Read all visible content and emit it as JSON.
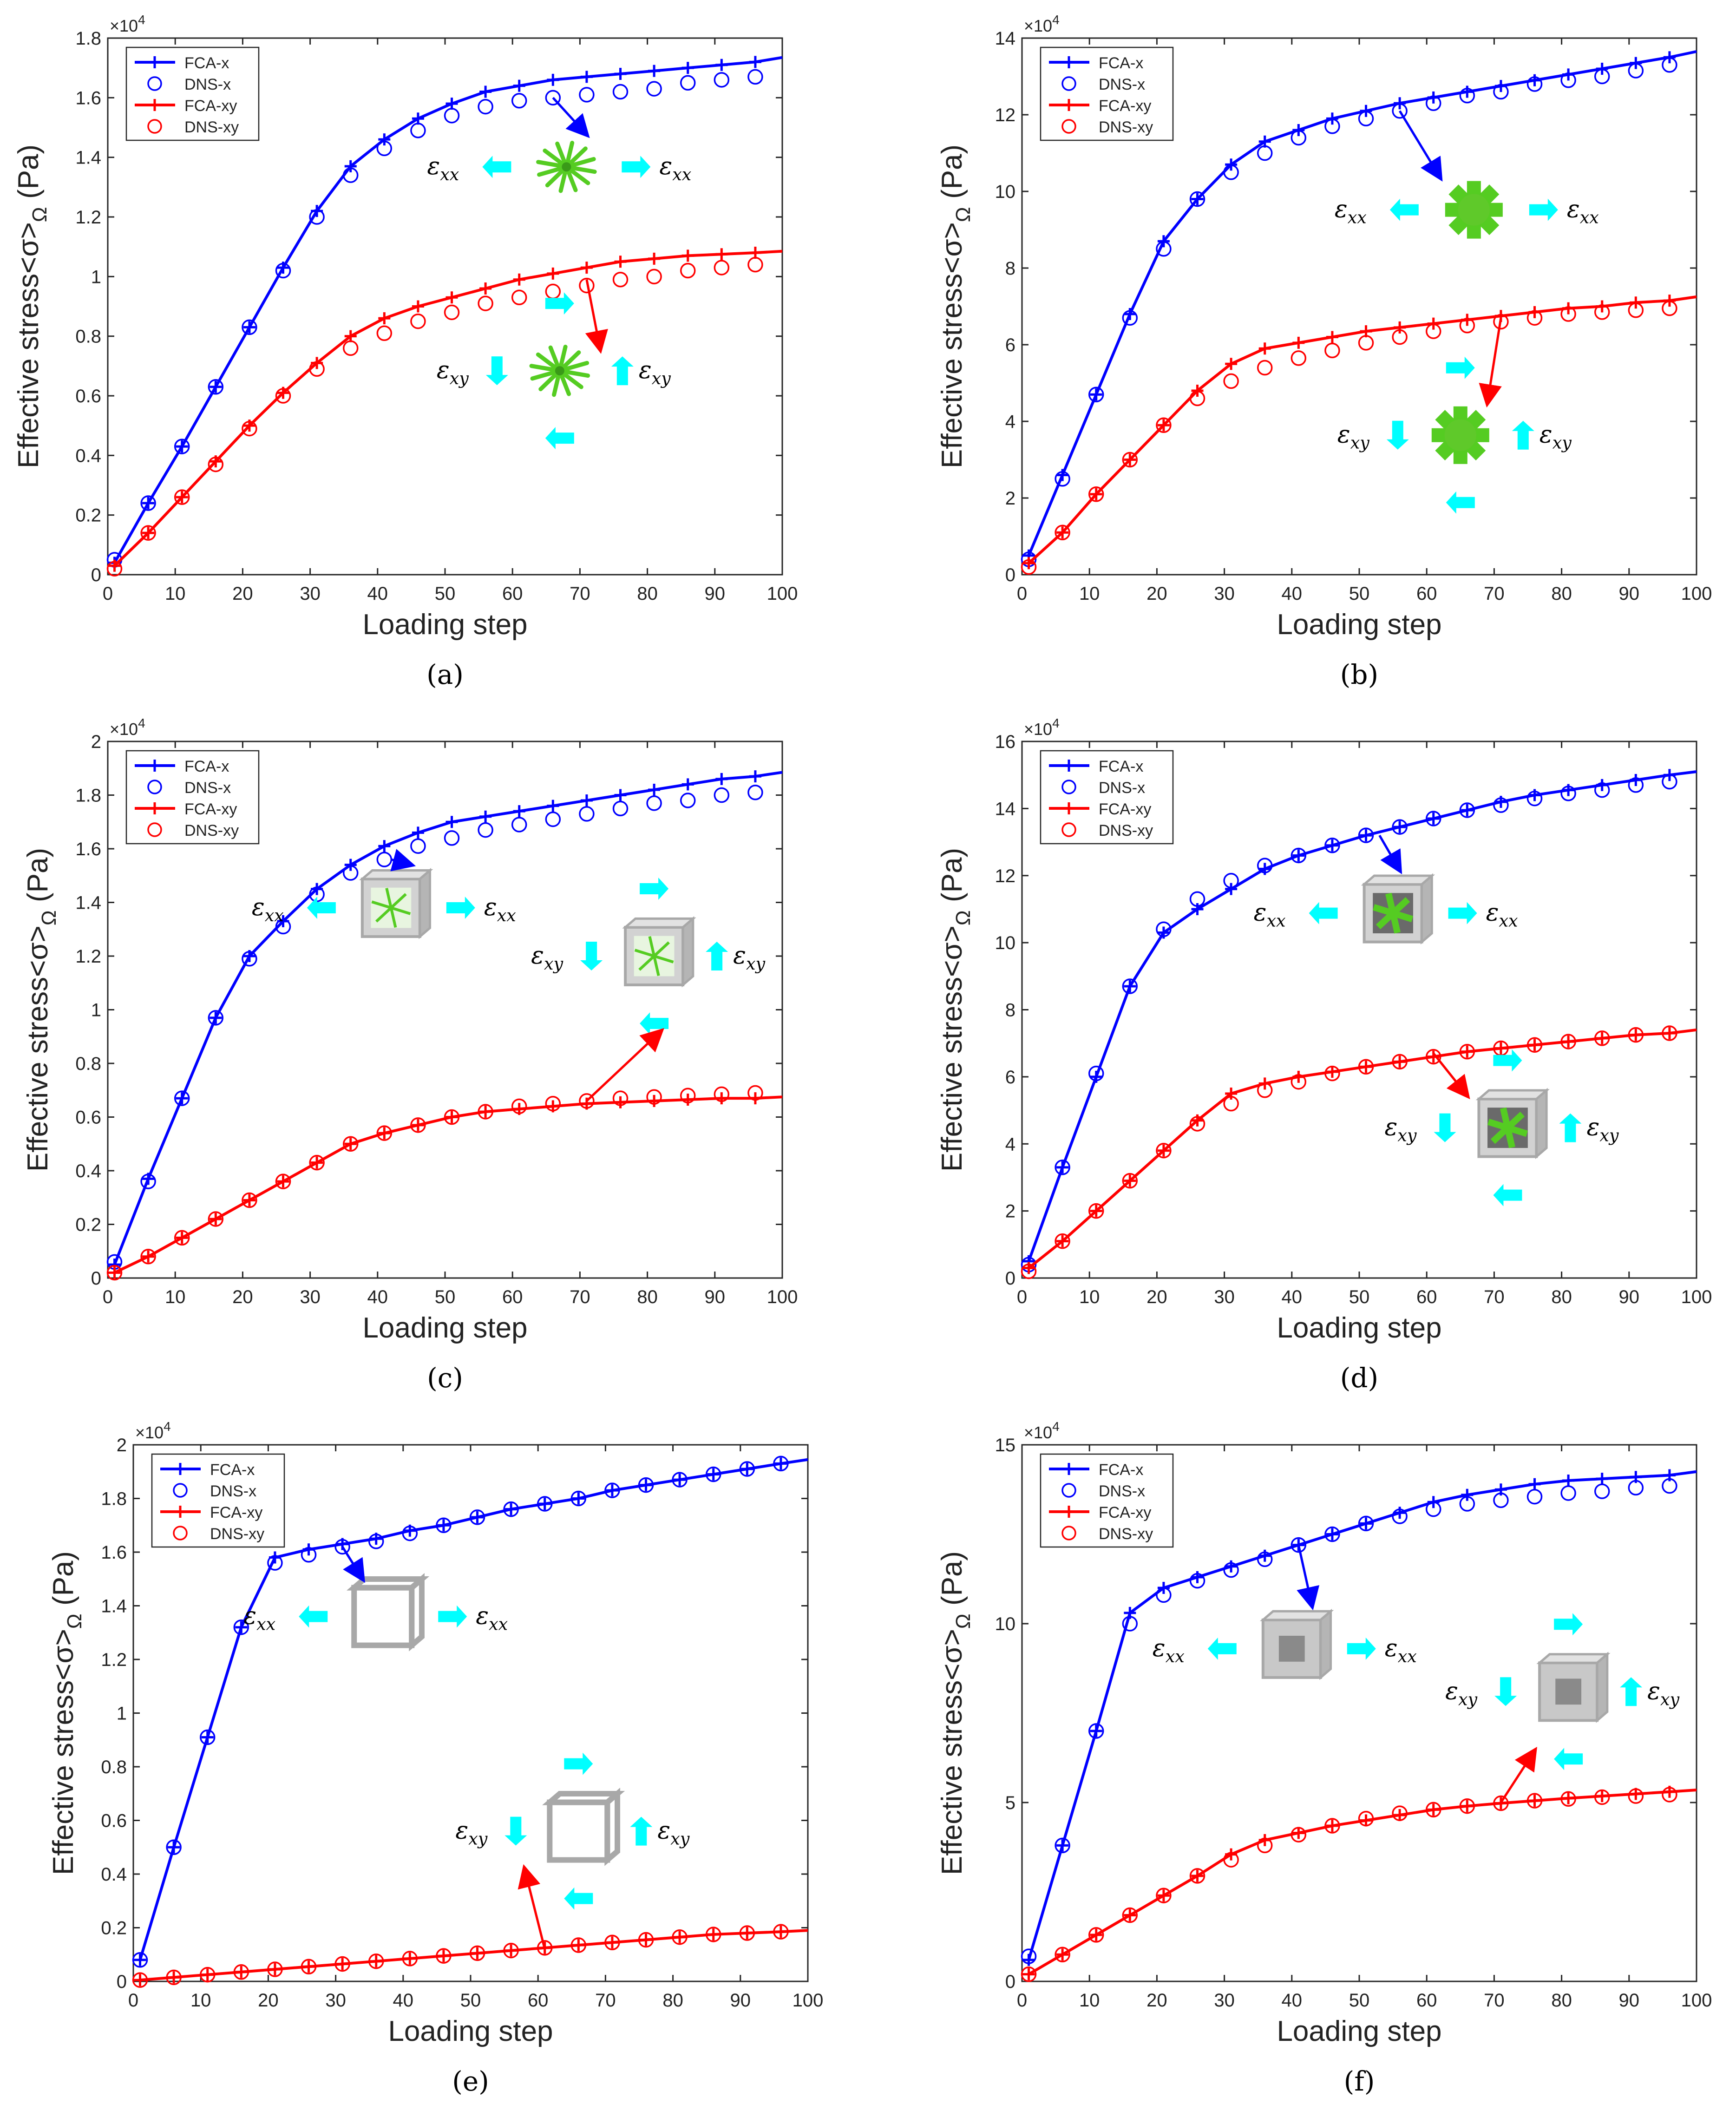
{
  "figure": {
    "colors": {
      "blue": "#0000ff",
      "red": "#ff0000",
      "cyan": "#00ffff",
      "green": "#55cc22",
      "frame": "#a8a8a8",
      "axis": "#262626"
    },
    "common": {
      "xlabel": "Loading step",
      "ylabel": "Effective stress<σ>",
      "ylabel_sub": "Ω",
      "ylabel_unit": " (Pa)",
      "exponent": "×10",
      "exponent_power": "4",
      "strain_xx": "ε",
      "strain_xx_sub": "xx",
      "strain_xy": "ε",
      "strain_xy_sub": "xy"
    }
  },
  "chart_data": [
    {
      "type": "line",
      "panel": "a",
      "caption": "(a)",
      "xlim": [
        0,
        100
      ],
      "ylim": [
        0,
        1.8
      ],
      "xticks": [
        0,
        10,
        20,
        30,
        40,
        50,
        60,
        70,
        80,
        90,
        100
      ],
      "yticks": [
        0,
        0.2,
        0.4,
        0.6,
        0.8,
        1,
        1.2,
        1.4,
        1.6,
        1.8
      ],
      "ytick_labels": [
        "0",
        "0.2",
        "0.4",
        "0.6",
        "0.8",
        "1",
        "1.2",
        "1.4",
        "1.6",
        "1.8"
      ],
      "inset": "star",
      "legend": [
        "FCA-x",
        "DNS-x",
        "FCA-xy",
        "DNS-xy"
      ],
      "x": [
        1,
        6,
        11,
        16,
        21,
        26,
        31,
        36,
        41,
        46,
        51,
        56,
        61,
        66,
        71,
        76,
        81,
        86,
        91,
        96
      ],
      "series": [
        {
          "name": "FCA-x",
          "style": "line",
          "color": "blue",
          "values": [
            0.04,
            0.24,
            0.43,
            0.63,
            0.83,
            1.03,
            1.22,
            1.37,
            1.46,
            1.53,
            1.58,
            1.62,
            1.64,
            1.66,
            1.67,
            1.68,
            1.69,
            1.7,
            1.71,
            1.72
          ],
          "end": [
            100,
            1.735
          ]
        },
        {
          "name": "DNS-x",
          "style": "circle",
          "color": "blue",
          "values": [
            0.05,
            0.24,
            0.43,
            0.63,
            0.83,
            1.02,
            1.2,
            1.34,
            1.43,
            1.49,
            1.54,
            1.57,
            1.59,
            1.6,
            1.61,
            1.62,
            1.63,
            1.65,
            1.66,
            1.67
          ]
        },
        {
          "name": "FCA-xy",
          "style": "line",
          "color": "red",
          "values": [
            0.03,
            0.14,
            0.26,
            0.38,
            0.5,
            0.61,
            0.71,
            0.8,
            0.86,
            0.9,
            0.93,
            0.96,
            0.99,
            1.01,
            1.03,
            1.05,
            1.06,
            1.07,
            1.075,
            1.08
          ],
          "end": [
            100,
            1.085
          ]
        },
        {
          "name": "DNS-xy",
          "style": "circle",
          "color": "red",
          "values": [
            0.02,
            0.14,
            0.26,
            0.37,
            0.49,
            0.6,
            0.69,
            0.76,
            0.81,
            0.85,
            0.88,
            0.91,
            0.93,
            0.95,
            0.97,
            0.99,
            1.0,
            1.02,
            1.03,
            1.04
          ]
        }
      ]
    },
    {
      "type": "line",
      "panel": "b",
      "caption": "(b)",
      "xlim": [
        0,
        100
      ],
      "ylim": [
        0,
        14
      ],
      "xticks": [
        0,
        10,
        20,
        30,
        40,
        50,
        60,
        70,
        80,
        90,
        100
      ],
      "yticks": [
        0,
        2,
        4,
        6,
        8,
        10,
        12,
        14
      ],
      "ytick_labels": [
        "0",
        "2",
        "4",
        "6",
        "8",
        "10",
        "12",
        "14"
      ],
      "inset": "spiky",
      "legend": [
        "FCA-x",
        "DNS-x",
        "FCA-xy",
        "DNS-xy"
      ],
      "x": [
        1,
        6,
        11,
        16,
        21,
        26,
        31,
        36,
        41,
        46,
        51,
        56,
        61,
        66,
        71,
        76,
        81,
        86,
        91,
        96
      ],
      "series": [
        {
          "name": "FCA-x",
          "style": "line",
          "color": "blue",
          "values": [
            0.5,
            2.6,
            4.7,
            6.8,
            8.7,
            9.8,
            10.7,
            11.3,
            11.6,
            11.9,
            12.1,
            12.3,
            12.45,
            12.6,
            12.75,
            12.9,
            13.05,
            13.2,
            13.35,
            13.5
          ],
          "end": [
            100,
            13.65
          ]
        },
        {
          "name": "DNS-x",
          "style": "circle",
          "color": "blue",
          "values": [
            0.4,
            2.5,
            4.7,
            6.7,
            8.5,
            9.8,
            10.5,
            11.0,
            11.4,
            11.7,
            11.9,
            12.1,
            12.3,
            12.5,
            12.6,
            12.8,
            12.9,
            13.0,
            13.15,
            13.3
          ]
        },
        {
          "name": "FCA-xy",
          "style": "line",
          "color": "red",
          "values": [
            0.3,
            1.1,
            2.1,
            3.0,
            3.9,
            4.8,
            5.5,
            5.9,
            6.05,
            6.2,
            6.35,
            6.45,
            6.55,
            6.65,
            6.75,
            6.85,
            6.95,
            7.0,
            7.1,
            7.15
          ],
          "end": [
            100,
            7.25
          ]
        },
        {
          "name": "DNS-xy",
          "style": "circle",
          "color": "red",
          "values": [
            0.2,
            1.1,
            2.1,
            3.0,
            3.9,
            4.6,
            5.05,
            5.4,
            5.65,
            5.85,
            6.05,
            6.2,
            6.35,
            6.5,
            6.6,
            6.7,
            6.8,
            6.85,
            6.9,
            6.95
          ]
        }
      ]
    },
    {
      "type": "line",
      "panel": "c",
      "caption": "(c)",
      "xlim": [
        0,
        100
      ],
      "ylim": [
        0,
        2
      ],
      "xticks": [
        0,
        10,
        20,
        30,
        40,
        50,
        60,
        70,
        80,
        90,
        100
      ],
      "yticks": [
        0,
        0.2,
        0.4,
        0.6,
        0.8,
        1,
        1.2,
        1.4,
        1.6,
        1.8,
        2
      ],
      "ytick_labels": [
        "0",
        "0.2",
        "0.4",
        "0.6",
        "0.8",
        "1",
        "1.2",
        "1.4",
        "1.6",
        "1.8",
        "2"
      ],
      "inset": "cube-green",
      "legend": [
        "FCA-x",
        "DNS-x",
        "FCA-xy",
        "DNS-xy"
      ],
      "x": [
        1,
        6,
        11,
        16,
        21,
        26,
        31,
        36,
        41,
        46,
        51,
        56,
        61,
        66,
        71,
        76,
        81,
        86,
        91,
        96
      ],
      "series": [
        {
          "name": "FCA-x",
          "style": "line",
          "color": "blue",
          "values": [
            0.05,
            0.37,
            0.67,
            0.97,
            1.2,
            1.33,
            1.45,
            1.54,
            1.61,
            1.66,
            1.7,
            1.72,
            1.74,
            1.76,
            1.78,
            1.8,
            1.82,
            1.84,
            1.86,
            1.87
          ],
          "end": [
            100,
            1.885
          ]
        },
        {
          "name": "DNS-x",
          "style": "circle",
          "color": "blue",
          "values": [
            0.06,
            0.36,
            0.67,
            0.97,
            1.19,
            1.31,
            1.43,
            1.51,
            1.56,
            1.61,
            1.64,
            1.67,
            1.69,
            1.71,
            1.73,
            1.75,
            1.77,
            1.78,
            1.8,
            1.81
          ]
        },
        {
          "name": "FCA-xy",
          "style": "line",
          "color": "red",
          "values": [
            0.02,
            0.08,
            0.15,
            0.22,
            0.29,
            0.36,
            0.43,
            0.5,
            0.54,
            0.57,
            0.6,
            0.62,
            0.63,
            0.64,
            0.65,
            0.655,
            0.66,
            0.665,
            0.67,
            0.67
          ],
          "end": [
            100,
            0.675
          ]
        },
        {
          "name": "DNS-xy",
          "style": "circle",
          "color": "red",
          "values": [
            0.02,
            0.08,
            0.15,
            0.22,
            0.29,
            0.36,
            0.43,
            0.5,
            0.54,
            0.57,
            0.6,
            0.62,
            0.64,
            0.65,
            0.66,
            0.67,
            0.675,
            0.68,
            0.685,
            0.69
          ]
        }
      ]
    },
    {
      "type": "line",
      "panel": "d",
      "caption": "(d)",
      "xlim": [
        0,
        100
      ],
      "ylim": [
        0,
        16
      ],
      "xticks": [
        0,
        10,
        20,
        30,
        40,
        50,
        60,
        70,
        80,
        90,
        100
      ],
      "yticks": [
        0,
        2,
        4,
        6,
        8,
        10,
        12,
        14,
        16
      ],
      "ytick_labels": [
        "0",
        "2",
        "4",
        "6",
        "8",
        "10",
        "12",
        "14",
        "16"
      ],
      "inset": "cube-gray",
      "legend": [
        "FCA-x",
        "DNS-x",
        "FCA-xy",
        "DNS-xy"
      ],
      "x": [
        1,
        6,
        11,
        16,
        21,
        26,
        31,
        36,
        41,
        46,
        51,
        56,
        61,
        66,
        71,
        76,
        81,
        86,
        91,
        96
      ],
      "series": [
        {
          "name": "FCA-x",
          "style": "line",
          "color": "blue",
          "values": [
            0.5,
            3.3,
            6.0,
            8.7,
            10.3,
            11.0,
            11.6,
            12.2,
            12.6,
            12.9,
            13.2,
            13.45,
            13.7,
            13.95,
            14.2,
            14.4,
            14.55,
            14.7,
            14.85,
            15.0
          ],
          "end": [
            100,
            15.1
          ]
        },
        {
          "name": "DNS-x",
          "style": "circle",
          "color": "blue",
          "values": [
            0.4,
            3.3,
            6.1,
            8.7,
            10.4,
            11.3,
            11.85,
            12.3,
            12.6,
            12.9,
            13.2,
            13.45,
            13.7,
            13.95,
            14.1,
            14.3,
            14.45,
            14.55,
            14.7,
            14.8
          ]
        },
        {
          "name": "FCA-xy",
          "style": "line",
          "color": "red",
          "values": [
            0.3,
            1.1,
            2.0,
            2.9,
            3.8,
            4.7,
            5.5,
            5.8,
            6.0,
            6.15,
            6.3,
            6.45,
            6.6,
            6.75,
            6.85,
            6.95,
            7.05,
            7.15,
            7.25,
            7.3
          ],
          "end": [
            100,
            7.4
          ]
        },
        {
          "name": "DNS-xy",
          "style": "circle",
          "color": "red",
          "values": [
            0.2,
            1.1,
            2.0,
            2.9,
            3.8,
            4.6,
            5.2,
            5.6,
            5.85,
            6.1,
            6.3,
            6.45,
            6.6,
            6.75,
            6.85,
            6.95,
            7.05,
            7.15,
            7.25,
            7.3
          ]
        }
      ]
    },
    {
      "type": "line",
      "panel": "e",
      "caption": "(e)",
      "xlim": [
        0,
        100
      ],
      "ylim": [
        0,
        2
      ],
      "xticks": [
        0,
        10,
        20,
        30,
        40,
        50,
        60,
        70,
        80,
        90,
        100
      ],
      "yticks": [
        0,
        0.2,
        0.4,
        0.6,
        0.8,
        1,
        1.2,
        1.4,
        1.6,
        1.8,
        2
      ],
      "ytick_labels": [
        "0",
        "0.2",
        "0.4",
        "0.6",
        "0.8",
        "1",
        "1.2",
        "1.4",
        "1.6",
        "1.8",
        "2"
      ],
      "inset": "frame",
      "legend": [
        "FCA-x",
        "DNS-x",
        "FCA-xy",
        "DNS-xy"
      ],
      "x": [
        1,
        6,
        11,
        16,
        21,
        26,
        31,
        36,
        41,
        46,
        51,
        56,
        61,
        66,
        71,
        76,
        81,
        86,
        91,
        96
      ],
      "series": [
        {
          "name": "FCA-x",
          "style": "line",
          "color": "blue",
          "values": [
            0.08,
            0.5,
            0.91,
            1.32,
            1.58,
            1.61,
            1.63,
            1.65,
            1.68,
            1.7,
            1.73,
            1.76,
            1.78,
            1.8,
            1.83,
            1.85,
            1.87,
            1.89,
            1.91,
            1.93
          ],
          "end": [
            100,
            1.945
          ]
        },
        {
          "name": "DNS-x",
          "style": "circle",
          "color": "blue",
          "values": [
            0.08,
            0.5,
            0.91,
            1.32,
            1.56,
            1.59,
            1.62,
            1.64,
            1.67,
            1.7,
            1.73,
            1.76,
            1.78,
            1.8,
            1.83,
            1.85,
            1.87,
            1.89,
            1.91,
            1.93
          ]
        },
        {
          "name": "FCA-xy",
          "style": "line",
          "color": "red",
          "values": [
            0.005,
            0.015,
            0.025,
            0.035,
            0.045,
            0.055,
            0.065,
            0.075,
            0.085,
            0.095,
            0.105,
            0.115,
            0.125,
            0.135,
            0.145,
            0.155,
            0.165,
            0.175,
            0.18,
            0.185
          ],
          "end": [
            100,
            0.19
          ]
        },
        {
          "name": "DNS-xy",
          "style": "circle",
          "color": "red",
          "values": [
            0.005,
            0.015,
            0.025,
            0.035,
            0.045,
            0.055,
            0.065,
            0.075,
            0.085,
            0.095,
            0.105,
            0.115,
            0.125,
            0.135,
            0.145,
            0.155,
            0.165,
            0.175,
            0.18,
            0.185
          ]
        }
      ]
    },
    {
      "type": "line",
      "panel": "f",
      "caption": "(f)",
      "xlim": [
        0,
        100
      ],
      "ylim": [
        0,
        15
      ],
      "xticks": [
        0,
        10,
        20,
        30,
        40,
        50,
        60,
        70,
        80,
        90,
        100
      ],
      "yticks": [
        0,
        5,
        10,
        15
      ],
      "ytick_labels": [
        "0",
        "5",
        "10",
        "15"
      ],
      "inset": "hollow",
      "legend": [
        "FCA-x",
        "DNS-x",
        "FCA-xy",
        "DNS-xy"
      ],
      "x": [
        1,
        6,
        11,
        16,
        21,
        26,
        31,
        36,
        41,
        46,
        51,
        56,
        61,
        66,
        71,
        76,
        81,
        86,
        91,
        96
      ],
      "series": [
        {
          "name": "FCA-x",
          "style": "line",
          "color": "blue",
          "values": [
            0.6,
            3.8,
            7.0,
            10.3,
            11.0,
            11.3,
            11.6,
            11.9,
            12.2,
            12.5,
            12.8,
            13.1,
            13.4,
            13.6,
            13.75,
            13.9,
            14.0,
            14.05,
            14.1,
            14.15
          ],
          "end": [
            100,
            14.25
          ]
        },
        {
          "name": "DNS-x",
          "style": "circle",
          "color": "blue",
          "values": [
            0.7,
            3.8,
            7.0,
            10.0,
            10.8,
            11.2,
            11.5,
            11.8,
            12.2,
            12.5,
            12.8,
            13.0,
            13.2,
            13.35,
            13.45,
            13.55,
            13.65,
            13.7,
            13.8,
            13.85
          ]
        },
        {
          "name": "FCA-xy",
          "style": "line",
          "color": "red",
          "values": [
            0.2,
            0.75,
            1.3,
            1.85,
            2.4,
            2.95,
            3.55,
            3.95,
            4.15,
            4.35,
            4.5,
            4.65,
            4.8,
            4.9,
            4.98,
            5.05,
            5.12,
            5.18,
            5.24,
            5.3
          ],
          "end": [
            100,
            5.35
          ]
        },
        {
          "name": "DNS-xy",
          "style": "circle",
          "color": "red",
          "values": [
            0.2,
            0.75,
            1.3,
            1.85,
            2.4,
            2.95,
            3.4,
            3.8,
            4.1,
            4.35,
            4.55,
            4.7,
            4.8,
            4.9,
            4.98,
            5.05,
            5.1,
            5.15,
            5.18,
            5.22
          ]
        }
      ]
    }
  ]
}
